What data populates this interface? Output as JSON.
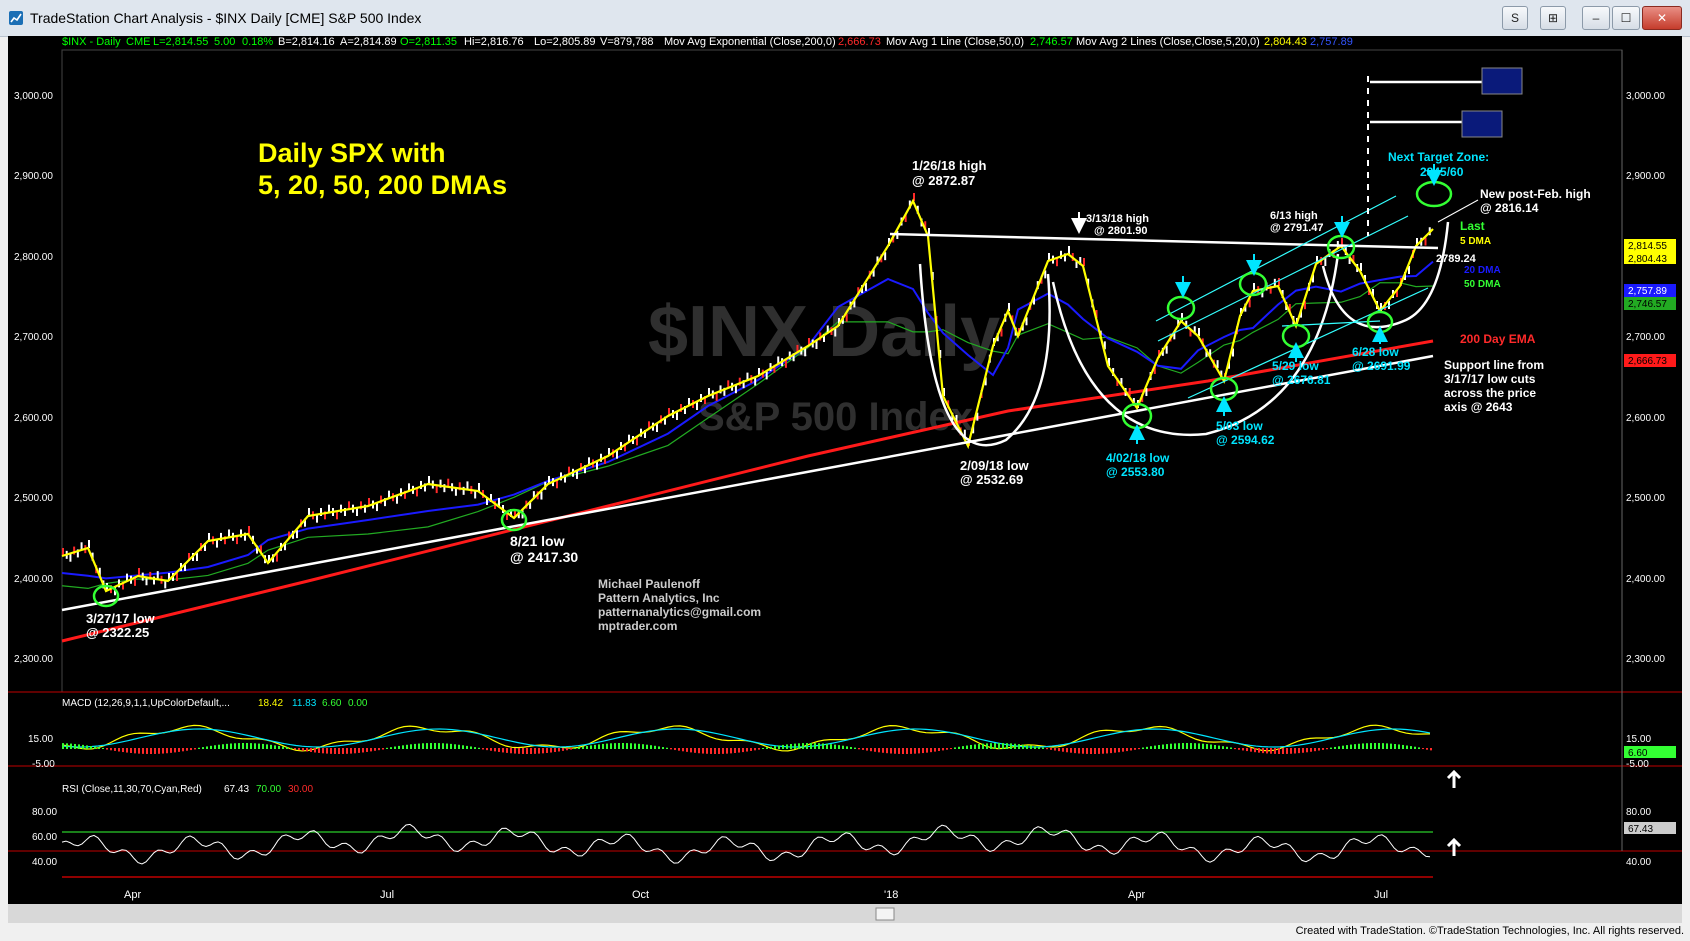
{
  "window": {
    "title": "TradeStation Chart Analysis - $INX Daily [CME] S&P 500 Index",
    "buttons": [
      "S",
      "⊞",
      "–",
      "☐",
      "✕"
    ],
    "credit": "Created with TradeStation. ©TradeStation Technologies, Inc. All rights reserved."
  },
  "header": {
    "symbol": "$INX - Daily",
    "exchange": "CME",
    "last": "L=2,814.55",
    "change": "5.00",
    "change_pct": "0.18%",
    "bid": "B=2,814.16",
    "ask": "A=2,814.89",
    "open": "O=2,811.35",
    "high": "Hi=2,816.76",
    "low": "Lo=2,805.89",
    "volume": "V=879,788",
    "ema_label": "Mov Avg Exponential (Close,200,0)",
    "ema_value": "2,666.73",
    "ma1_label": "Mov Avg 1 Line (Close,50,0)",
    "ma1_value": "2,746.57",
    "ma2_label": "Mov Avg 2 Lines (Close,Close,5,20,0)",
    "ma2_value1": "2,804.43",
    "ma2_value2": "2,757.89"
  },
  "watermark": {
    "symbol": "$INX Daily",
    "name": "S&P 500 Index"
  },
  "headline": {
    "line1": "Daily SPX with",
    "line2": "5, 20, 50, 200 DMAs"
  },
  "price_axis": [
    "3,000.00",
    "2,900.00",
    "2,800.00",
    "2,700.00",
    "2,600.00",
    "2,500.00",
    "2,400.00",
    "2,300.00"
  ],
  "price_tags": {
    "last": "2,814.55",
    "ma5": "2,804.43",
    "ma20": "2,757.89",
    "ma50": "2,746.57",
    "ema200": "2,666.73"
  },
  "annotations": {
    "jan26_line1": "1/26/18 high",
    "jan26_line2": "@ 2872.87",
    "mar13_line1": "3/13/18 high",
    "mar13_line2": "@ 2801.90",
    "jun13_line1": "6/13 high",
    "jun13_line2": "@ 2791.47",
    "target_line1": "Next Target Zone:",
    "target_line2": "2845/60",
    "newhigh_line1": "New post-Feb. high",
    "newhigh_line2": "@ 2816.14",
    "last_label": "Last",
    "dma5_label": "5 DMA",
    "dma20_label": "20 DMA",
    "dma50_label": "50 DMA",
    "level_2789": "2789.24",
    "ema200_label": "200 Day EMA",
    "support_line1": "Support line from",
    "support_line2": "3/17/17 low cuts",
    "support_line3": "across the price",
    "support_line4": "axis @ 2643",
    "may29_line1": "5/29 low",
    "may29_line2": "@ 2676.81",
    "jun28_line1": "6/28 low",
    "jun28_line2": "@ 2691.99",
    "may03_line1": "5/03 low",
    "may03_line2": "@ 2594.62",
    "apr02_line1": "4/02/18 low",
    "apr02_line2": "@ 2553.80",
    "feb09_line1": "2/09/18 low",
    "feb09_line2": "@ 2532.69",
    "aug21_line1": "8/21 low",
    "aug21_line2": "@ 2417.30",
    "mar27_line1": "3/27/17 low",
    "mar27_line2": "@ 2322.25",
    "author1": "Michael Paulenoff",
    "author2": "Pattern Analytics, Inc",
    "author3": "patternanalytics@gmail.com",
    "author4": "mptrader.com"
  },
  "macd": {
    "label": "MACD (12,26,9,1,1,UpColorDefault,...",
    "v1": "18.42",
    "v2": "11.83",
    "v3": "6.60",
    "v4": "0.00",
    "axis": [
      "15.00",
      "-5.00"
    ],
    "tags": {
      "a": "15.00",
      "b": "6.60"
    }
  },
  "rsi": {
    "label": "RSI (Close,11,30,70,Cyan,Red)",
    "v1": "67.43",
    "v2": "70.00",
    "v3": "30.00",
    "axis": [
      "80.00",
      "60.00",
      "40.00"
    ],
    "tag": "67.43"
  },
  "time_axis": [
    "Apr",
    "Jul",
    "Oct",
    "'18",
    "Apr",
    "Jul"
  ],
  "colors": {
    "background": "#000000",
    "price_line": "#ffffff",
    "ma5": "#ffff00",
    "ma20": "#1a1aff",
    "ma50": "#22aa22",
    "ema200": "#ff1a1a",
    "cyan": "#00e5ff",
    "green_circle": "#33ff33",
    "headline": "#ffff00",
    "target_box": "#0a1a7a"
  }
}
